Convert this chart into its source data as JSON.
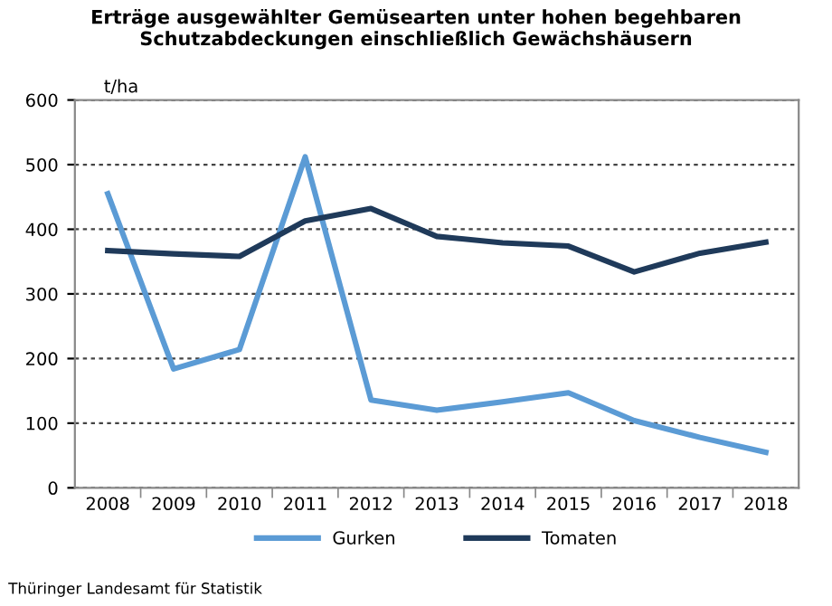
{
  "chart_data": {
    "type": "line",
    "title": "Erträge ausgewählter Gemüsearten unter hohen begehbaren\nSchutzabdeckungen einschließlich Gewächshäusern",
    "ylabel": "t/ha",
    "categories": [
      "2008",
      "2009",
      "2010",
      "2011",
      "2012",
      "2013",
      "2014",
      "2015",
      "2016",
      "2017",
      "2018"
    ],
    "series": [
      {
        "name": "Gurken",
        "color": "#5b9bd5",
        "values": [
          455,
          184,
          214,
          512,
          136,
          120,
          133,
          147,
          104,
          78,
          55
        ]
      },
      {
        "name": "Tomaten",
        "color": "#1f3a5a",
        "values": [
          367,
          362,
          358,
          413,
          432,
          389,
          379,
          374,
          334,
          363,
          380
        ]
      }
    ],
    "ylim": [
      0,
      600
    ],
    "yticks": [
      0,
      100,
      200,
      300,
      400,
      500,
      600
    ],
    "grid": "y",
    "legend": "bottom",
    "marker": "none",
    "line_style": "solid",
    "annotations": [
      "Thüringer Landesamt für Statistik"
    ]
  }
}
